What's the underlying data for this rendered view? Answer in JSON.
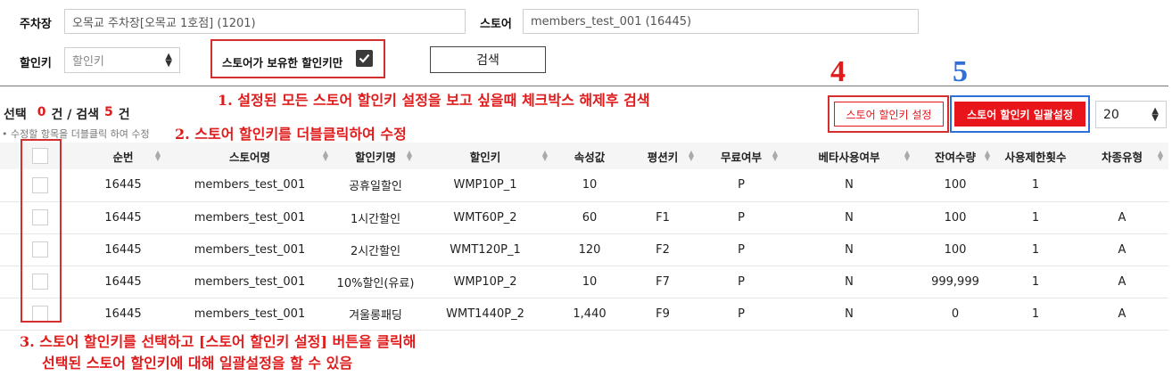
{
  "filters": {
    "parking_label": "주차장",
    "parking_value": "오목교 주차장[오목교 1호점] (1201)",
    "store_label": "스토어",
    "store_value": "members_test_001 (16445)",
    "discount_key_label": "할인키",
    "discount_key_select": "할인키",
    "owned_only_label": "스토어가 보유한 할인키만",
    "owned_only_checked": true,
    "search_button": "검색"
  },
  "summary": {
    "selected_label": "선택",
    "selected_count": "0",
    "unit1": "건 / 검색",
    "search_count": "5",
    "unit2": "건",
    "hint": "• 수정할 항목을 더블클릭 하여 수정"
  },
  "buttons": {
    "store_key_setting": "스토어 할인키 설정",
    "store_key_bulk_setting": "스토어 할인키 일괄설정",
    "page_size": "20"
  },
  "annotations": {
    "note1": "1. 설정된 모든 스토어 할인키 설정을 보고 싶을때 체크박스 해제후 검색",
    "note2": "2. 스토어 할인키를 더블클릭하여 수정",
    "note3_line1": "3. 스토어 할인키를 선택하고 [스토어 할인키 설정] 버튼을 클릭해",
    "note3_line2": "선택된 스토어 할인키에 대해 일괄설정을 할 수 있음",
    "num4": "4",
    "num5": "5"
  },
  "colors": {
    "annotation_red": "#e01b1b",
    "annotation_blue": "#2f6fd6",
    "primary_button": "#e8161b"
  },
  "table": {
    "headers": [
      "순번",
      "스토어명",
      "할인키명",
      "할인키",
      "속성값",
      "평션키",
      "무료여부",
      "베타사용여부",
      "잔여수량",
      "사용제한횟수",
      "차종유형"
    ],
    "rows": [
      [
        "16445",
        "members_test_001",
        "공휴일할인",
        "WMP10P_1",
        "10",
        "",
        "P",
        "N",
        "100",
        "1",
        ""
      ],
      [
        "16445",
        "members_test_001",
        "1시간할인",
        "WMT60P_2",
        "60",
        "F1",
        "P",
        "N",
        "100",
        "1",
        "A"
      ],
      [
        "16445",
        "members_test_001",
        "2시간할인",
        "WMT120P_1",
        "120",
        "F2",
        "P",
        "N",
        "100",
        "1",
        "A"
      ],
      [
        "16445",
        "members_test_001",
        "10%할인(유료)",
        "WMP10P_2",
        "10",
        "F7",
        "P",
        "N",
        "999,999",
        "1",
        "A"
      ],
      [
        "16445",
        "members_test_001",
        "겨울롱패딩",
        "WMT1440P_2",
        "1,440",
        "F9",
        "P",
        "N",
        "0",
        "1",
        "A"
      ]
    ]
  }
}
